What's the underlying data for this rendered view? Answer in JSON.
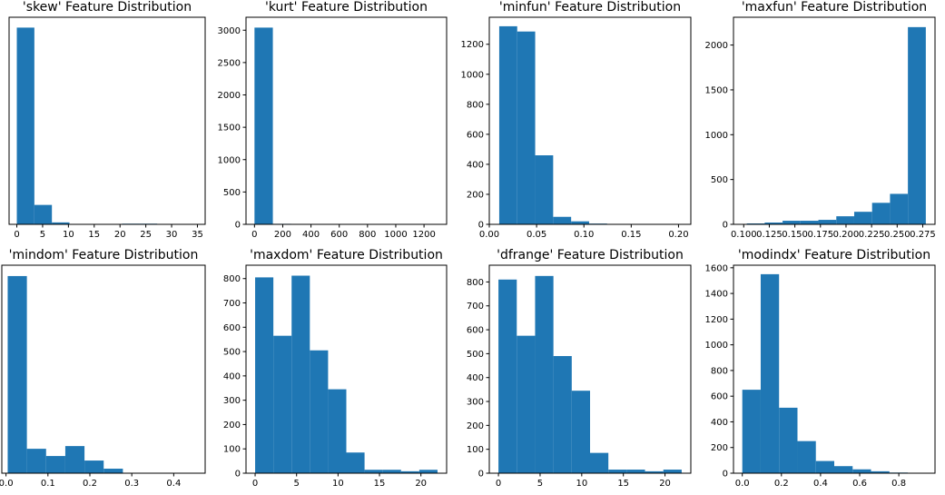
{
  "figure": {
    "bar_color": "#1f77b4",
    "axis_color": "#000000",
    "background": "#ffffff"
  },
  "chart_data": [
    {
      "type": "bar",
      "title": "'skew' Feature Distribution",
      "xlabel": "",
      "ylabel": "",
      "xlim": [
        -1.5,
        36.5
      ],
      "ylim": [
        0,
        3200
      ],
      "xticks": [
        0,
        5,
        10,
        15,
        20,
        25,
        30,
        35
      ],
      "yticks": [],
      "bin_edges": [
        0,
        3.4,
        6.8,
        10.2,
        13.6,
        17.0,
        20.4,
        23.8,
        27.2,
        30.6,
        34.0
      ],
      "values": [
        3040,
        300,
        30,
        5,
        1,
        3,
        10,
        10,
        3,
        1
      ]
    },
    {
      "type": "bar",
      "title": "'kurt' Feature Distribution",
      "xlabel": "",
      "ylabel": "",
      "xlim": [
        -60,
        1360
      ],
      "ylim": [
        0,
        3200
      ],
      "xticks": [
        0,
        200,
        400,
        600,
        800,
        1000,
        1200
      ],
      "yticks": [
        0,
        500,
        1000,
        1500,
        2000,
        2500,
        3000
      ],
      "bin_edges": [
        0,
        130,
        260,
        390,
        520,
        650,
        780,
        910,
        1040,
        1170,
        1300
      ],
      "values": [
        3040,
        8,
        6,
        5,
        5,
        4,
        4,
        3,
        0,
        1
      ]
    },
    {
      "type": "bar",
      "title": "'minfun' Feature Distribution",
      "xlabel": "",
      "ylabel": "",
      "xlim": [
        0,
        0.213
      ],
      "ylim": [
        0,
        1380
      ],
      "xticks": [
        0.0,
        0.05,
        0.1,
        0.15,
        0.2
      ],
      "xtick_labels": [
        "0.00",
        "0.05",
        "0.10",
        "0.15",
        "0.20"
      ],
      "yticks": [
        0,
        200,
        400,
        600,
        800,
        1000,
        1200
      ],
      "bin_edges": [
        0.0105,
        0.0295,
        0.0485,
        0.0675,
        0.0865,
        0.1055,
        0.1245,
        0.1435,
        0.1625,
        0.1815,
        0.2005
      ],
      "values": [
        1320,
        1285,
        460,
        50,
        20,
        5,
        3,
        3,
        1,
        1
      ]
    },
    {
      "type": "bar",
      "title": "'maxfun' Feature Distribution",
      "xlabel": "",
      "ylabel": "",
      "xlim": [
        0.09,
        0.287
      ],
      "ylim": [
        0,
        2310
      ],
      "xticks": [
        0.1,
        0.125,
        0.15,
        0.175,
        0.2,
        0.225,
        0.25,
        0.275
      ],
      "xtick_labels": [
        "0.100",
        "0.125",
        "0.150",
        "0.175",
        "0.200",
        "0.225",
        "0.250",
        "0.275"
      ],
      "yticks": [
        0,
        500,
        1000,
        1500,
        2000
      ],
      "bin_edges": [
        0.103,
        0.1205,
        0.138,
        0.1555,
        0.173,
        0.1905,
        0.208,
        0.2255,
        0.243,
        0.2605,
        0.278
      ],
      "values": [
        10,
        20,
        40,
        40,
        50,
        90,
        140,
        240,
        340,
        2200
      ]
    },
    {
      "type": "bar",
      "title": "'mindom' Feature Distribution",
      "xlabel": "",
      "ylabel": "",
      "xlim": [
        -0.01,
        0.475
      ],
      "ylim": [
        0,
        2300
      ],
      "xticks": [
        0.0,
        0.1,
        0.2,
        0.3,
        0.4
      ],
      "xtick_labels": [
        "0.0",
        "0.1",
        "0.2",
        "0.3",
        "0.4"
      ],
      "yticks": [],
      "bin_edges": [
        0.004,
        0.0498,
        0.0956,
        0.1414,
        0.1872,
        0.233,
        0.2788,
        0.3246,
        0.3704,
        0.4162,
        0.462
      ],
      "values": [
        2180,
        270,
        190,
        300,
        140,
        50,
        5,
        3,
        2,
        1
      ]
    },
    {
      "type": "bar",
      "title": "'maxdom' Feature Distribution",
      "xlabel": "",
      "ylabel": "",
      "xlim": [
        -1.1,
        23.1
      ],
      "ylim": [
        0,
        855
      ],
      "xticks": [
        0,
        5,
        10,
        15,
        20
      ],
      "yticks": [
        0,
        100,
        200,
        300,
        400,
        500,
        600,
        700,
        800
      ],
      "bin_edges": [
        0,
        2.2,
        4.4,
        6.6,
        8.8,
        11.0,
        13.2,
        15.4,
        17.6,
        19.8,
        22.0
      ],
      "values": [
        805,
        565,
        812,
        505,
        345,
        85,
        14,
        14,
        8,
        14
      ]
    },
    {
      "type": "bar",
      "title": "'dfrange' Feature Distribution",
      "xlabel": "",
      "ylabel": "",
      "xlim": [
        -1.1,
        23.1
      ],
      "ylim": [
        0,
        870
      ],
      "xticks": [
        0,
        5,
        10,
        15,
        20
      ],
      "yticks": [
        0,
        100,
        200,
        300,
        400,
        500,
        600,
        700,
        800
      ],
      "bin_edges": [
        0,
        2.2,
        4.4,
        6.6,
        8.8,
        11.0,
        13.2,
        15.4,
        17.6,
        19.8,
        22.0
      ],
      "values": [
        810,
        575,
        825,
        490,
        345,
        85,
        15,
        15,
        8,
        15
      ]
    },
    {
      "type": "bar",
      "title": "'modindx' Feature Distribution",
      "xlabel": "",
      "ylabel": "",
      "xlim": [
        -0.045,
        0.985
      ],
      "ylim": [
        0,
        1620
      ],
      "xticks": [
        0.0,
        0.2,
        0.4,
        0.6,
        0.8
      ],
      "xtick_labels": [
        "0.0",
        "0.2",
        "0.4",
        "0.6",
        "0.8"
      ],
      "yticks": [
        0,
        200,
        400,
        600,
        800,
        1000,
        1200,
        1400,
        1600
      ],
      "bin_edges": [
        0,
        0.094,
        0.188,
        0.282,
        0.376,
        0.47,
        0.564,
        0.658,
        0.752,
        0.846,
        0.94
      ],
      "values": [
        650,
        1550,
        510,
        250,
        95,
        55,
        30,
        15,
        5,
        2
      ]
    }
  ]
}
